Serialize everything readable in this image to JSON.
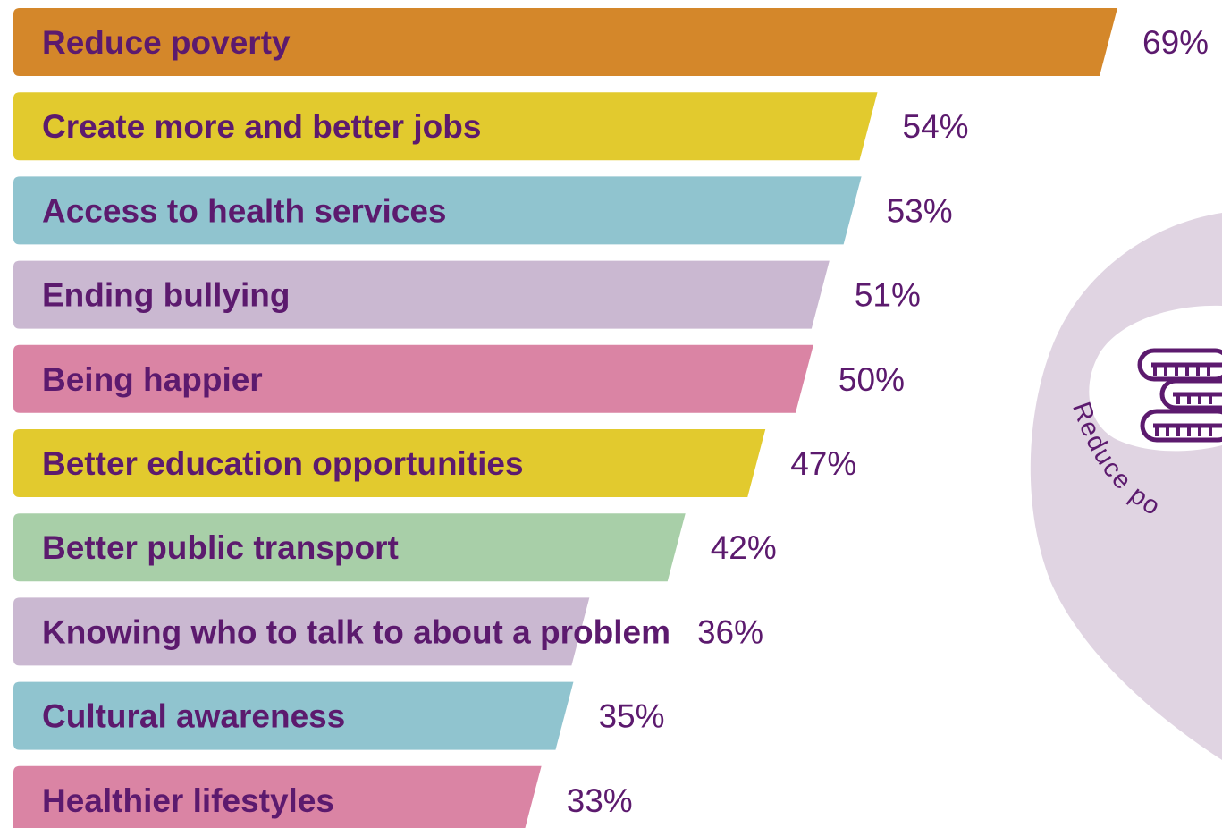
{
  "chart_data": {
    "type": "bar",
    "orientation": "horizontal",
    "title": "",
    "xlabel": "",
    "ylabel": "",
    "xlim": [
      0,
      69
    ],
    "grid": false,
    "categories": [
      "Reduce poverty",
      "Create more and better jobs",
      "Access to health services",
      "Ending bullying",
      "Being happier",
      "Better education opportunities",
      "Better public transport",
      "Knowing who to talk to about a problem",
      "Cultural awareness",
      "Healthier lifestyles"
    ],
    "values": [
      69,
      54,
      53,
      51,
      50,
      47,
      42,
      36,
      35,
      33
    ],
    "value_labels": [
      "69%",
      "54%",
      "53%",
      "51%",
      "50%",
      "47%",
      "42%",
      "36%",
      "35%",
      "33%"
    ],
    "colors": [
      "#d4872a",
      "#e2ca2e",
      "#90c4cf",
      "#cab8d1",
      "#da84a4",
      "#e2ca2e",
      "#a8cfa8",
      "#cab8d1",
      "#90c4cf",
      "#da84a4"
    ]
  },
  "decoration": {
    "caption": "Reduce po",
    "icon": "coins-icon",
    "blob_color": "#e0d4e2",
    "icon_color": "#5c1a6e"
  },
  "text_color": "#5c1a6e"
}
